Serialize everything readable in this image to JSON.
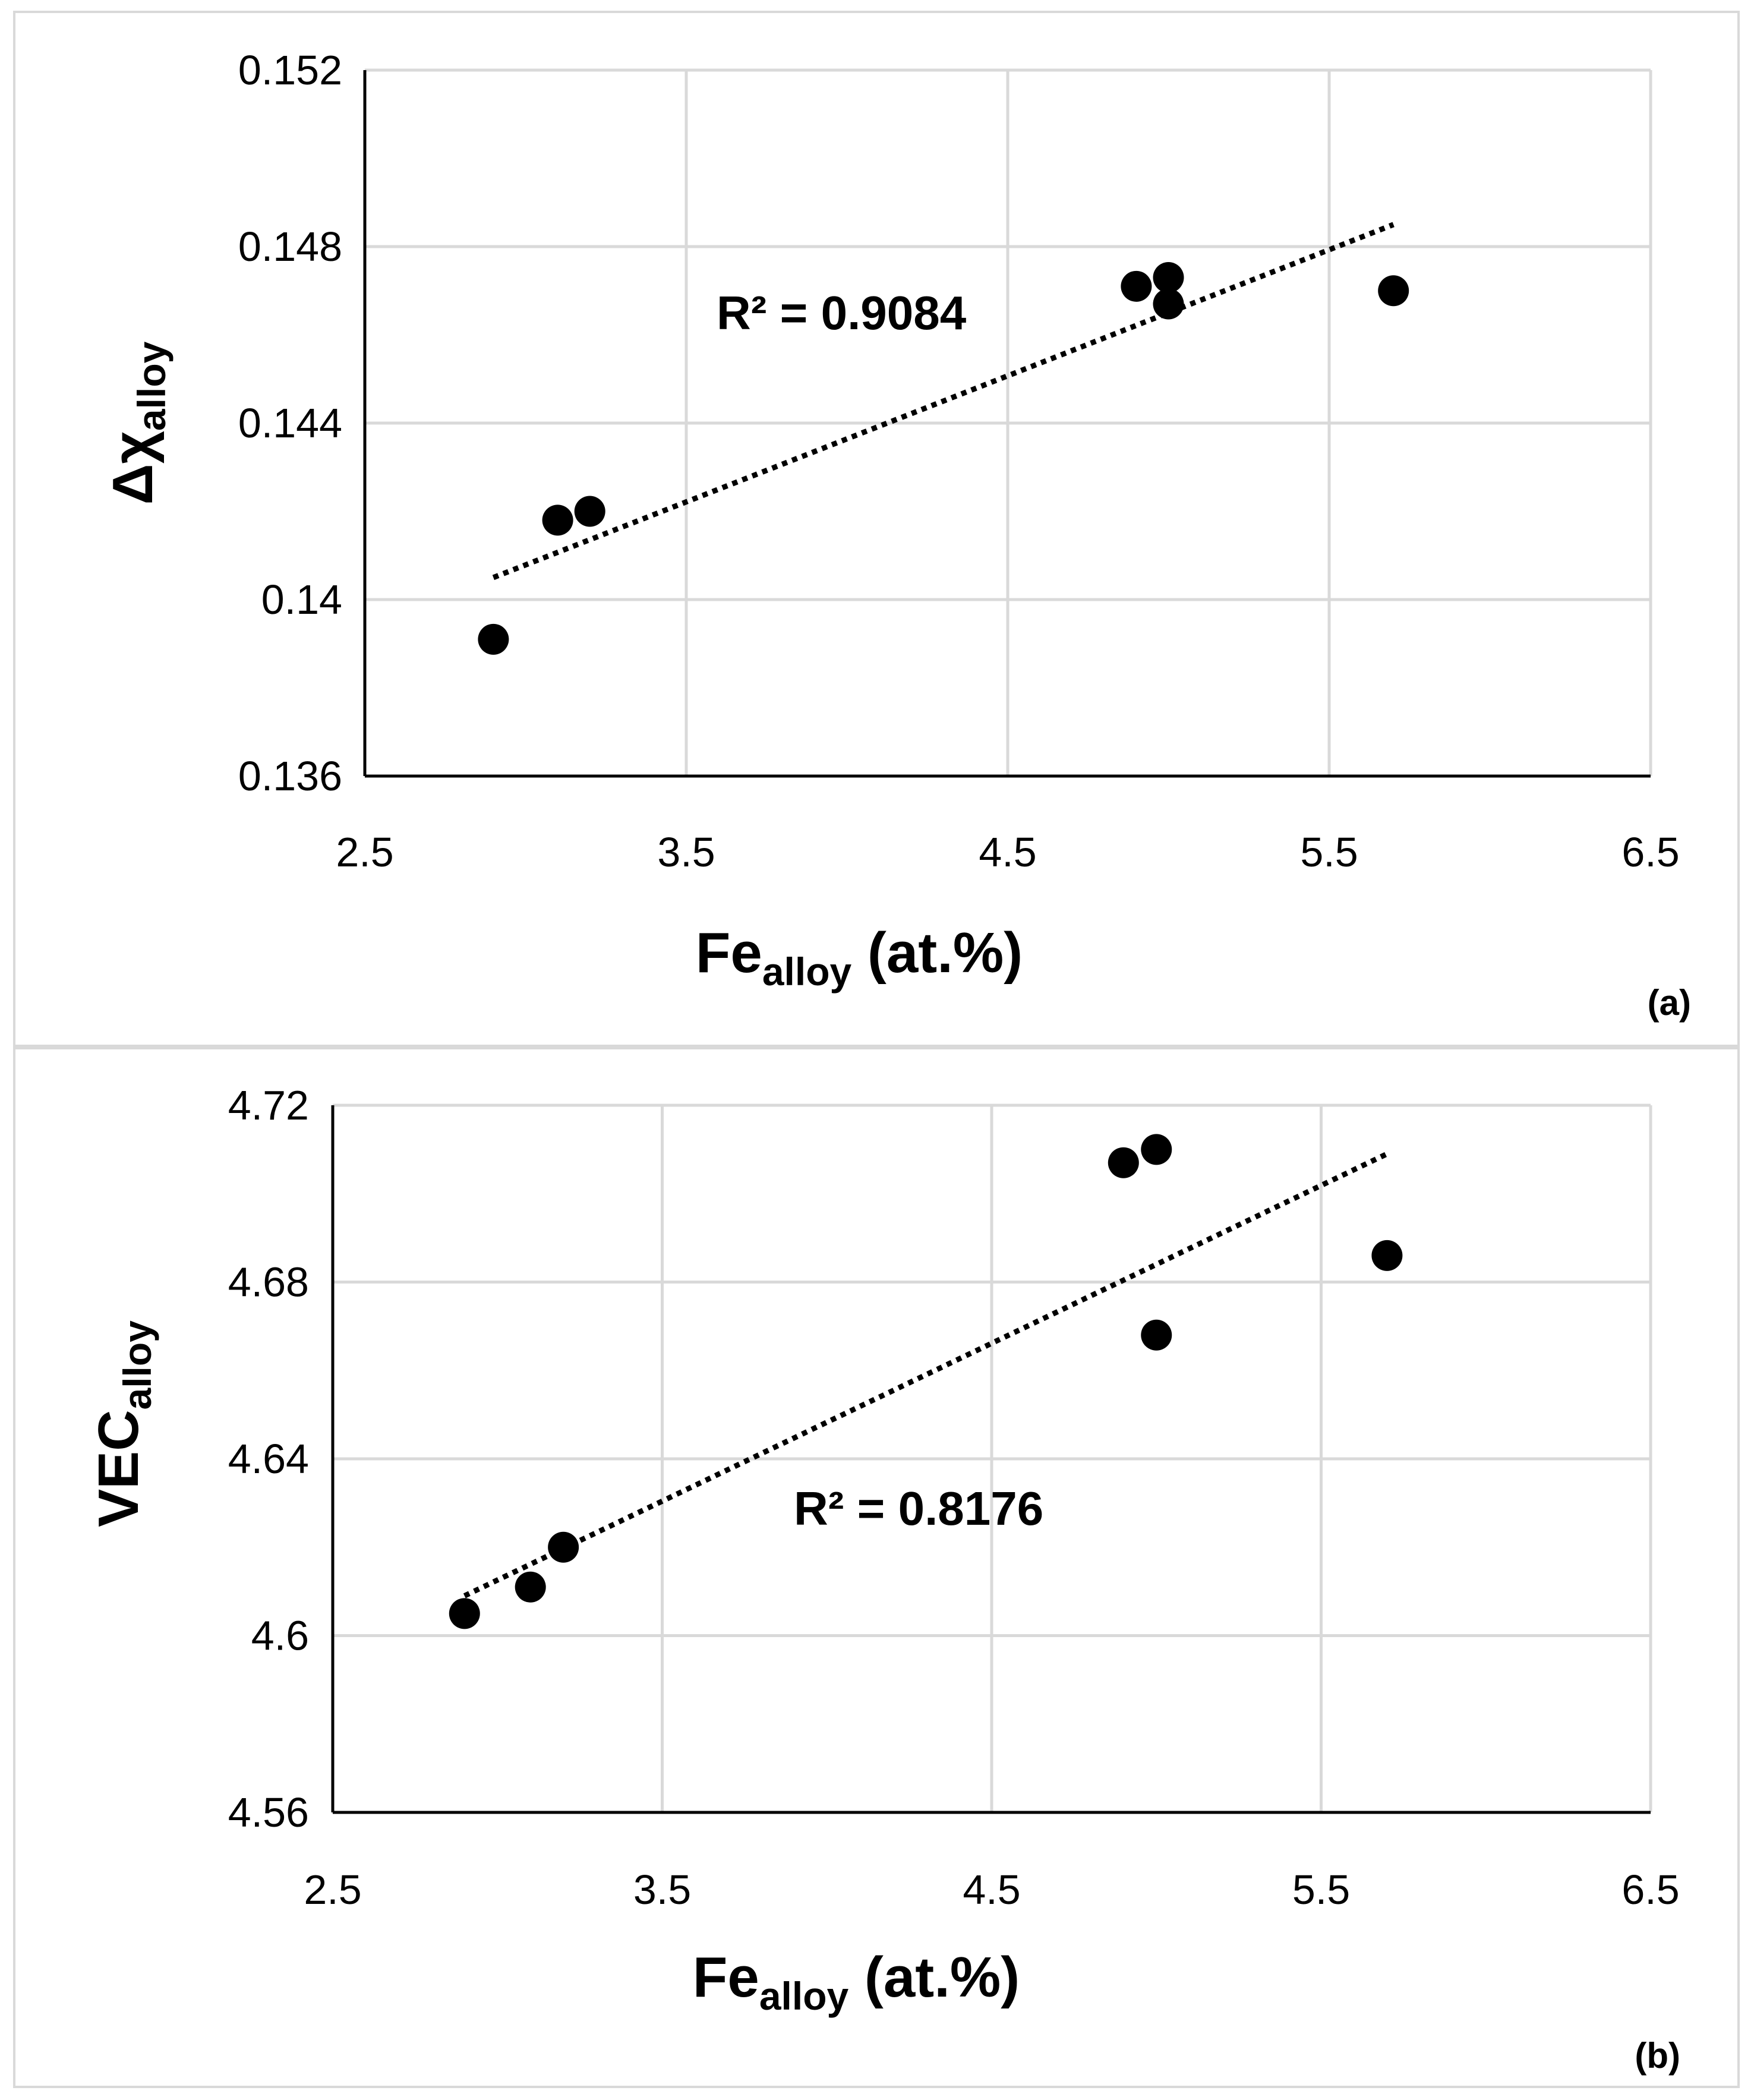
{
  "chart_data": [
    {
      "panel_label": "(a)",
      "type": "scatter",
      "title": "",
      "xlabel": {
        "main": "Fe",
        "sub": "alloy",
        "suffix": " (at.%)"
      },
      "ylabel": {
        "main": "Δχ",
        "sub": "alloy"
      },
      "xlim": [
        2.5,
        6.5
      ],
      "ylim": [
        0.136,
        0.152
      ],
      "xticks": [
        2.5,
        3.5,
        4.5,
        5.5,
        6.5
      ],
      "xtick_labels": [
        "2.5",
        "3.5",
        "4.5",
        "5.5",
        "6.5"
      ],
      "yticks": [
        0.136,
        0.14,
        0.144,
        0.148,
        0.152
      ],
      "ytick_labels": [
        "0.136",
        "0.14",
        "0.144",
        "0.148",
        "0.152"
      ],
      "grid": true,
      "points": [
        {
          "x": 2.9,
          "y": 0.1391
        },
        {
          "x": 3.1,
          "y": 0.1418
        },
        {
          "x": 3.2,
          "y": 0.142
        },
        {
          "x": 4.9,
          "y": 0.1471
        },
        {
          "x": 5.0,
          "y": 0.1473
        },
        {
          "x": 5.0,
          "y": 0.1467
        },
        {
          "x": 5.7,
          "y": 0.147
        }
      ],
      "trendline": {
        "type": "linear",
        "x": [
          2.9,
          5.7
        ],
        "y": [
          0.1405,
          0.1485
        ],
        "style": "dotted"
      },
      "annotation": "R² = 0.9084"
    },
    {
      "panel_label": "(b)",
      "type": "scatter",
      "title": "",
      "xlabel": {
        "main": "Fe",
        "sub": "alloy",
        "suffix": " (at.%)"
      },
      "ylabel": {
        "main": "VEC",
        "sub": "alloy"
      },
      "xlim": [
        2.5,
        6.5
      ],
      "ylim": [
        4.56,
        4.72
      ],
      "xticks": [
        2.5,
        3.5,
        4.5,
        5.5,
        6.5
      ],
      "xtick_labels": [
        "2.5",
        "3.5",
        "4.5",
        "5.5",
        "6.5"
      ],
      "yticks": [
        4.56,
        4.6,
        4.64,
        4.68,
        4.72
      ],
      "ytick_labels": [
        "4.56",
        "4.6",
        "4.64",
        "4.68",
        "4.72"
      ],
      "grid": true,
      "points": [
        {
          "x": 2.9,
          "y": 4.605
        },
        {
          "x": 3.1,
          "y": 4.611
        },
        {
          "x": 3.2,
          "y": 4.62
        },
        {
          "x": 4.9,
          "y": 4.707
        },
        {
          "x": 5.0,
          "y": 4.71
        },
        {
          "x": 5.0,
          "y": 4.668
        },
        {
          "x": 5.7,
          "y": 4.686
        }
      ],
      "trendline": {
        "type": "linear",
        "x": [
          2.9,
          5.7
        ],
        "y": [
          4.609,
          4.709
        ],
        "style": "dotted"
      },
      "annotation": "R² = 0.8176"
    }
  ]
}
